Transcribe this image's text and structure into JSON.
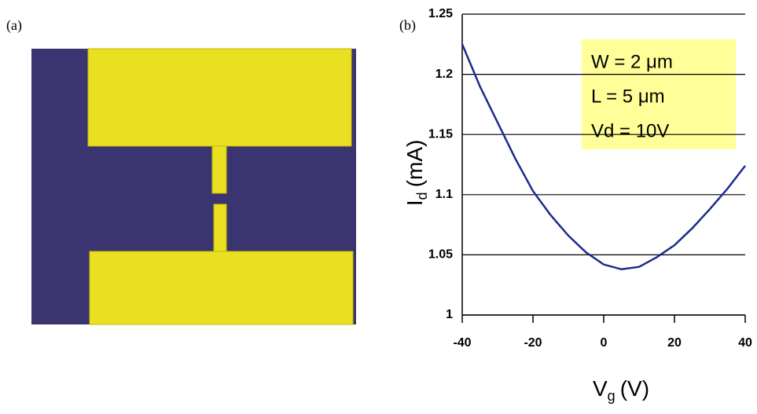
{
  "panels": {
    "a": "(a)",
    "b": "(b)"
  },
  "chart_data": {
    "type": "line",
    "x_label": {
      "main": "V",
      "sub": "g",
      "unit": "(V)"
    },
    "y_label": {
      "main": "I",
      "sub": "d",
      "unit": "(mA)"
    },
    "annotation": [
      "W = 2 μm",
      "L = 5 μm",
      "Vd = 10V"
    ],
    "x": [
      -40,
      -35,
      -30,
      -25,
      -20,
      -15,
      -10,
      -5,
      0,
      5,
      10,
      15,
      20,
      25,
      30,
      35,
      40
    ],
    "series": [
      {
        "color": "#1c2a8c",
        "values": [
          1.225,
          1.19,
          1.16,
          1.13,
          1.103,
          1.083,
          1.066,
          1.052,
          1.042,
          1.038,
          1.04,
          1.048,
          1.058,
          1.072,
          1.088,
          1.105,
          1.124
        ]
      }
    ],
    "xlim": [
      -40,
      40
    ],
    "xticks": [
      -40,
      -20,
      0,
      20,
      40
    ],
    "ylim": [
      1,
      1.25
    ],
    "yticks": [
      1,
      1.05,
      1.1,
      1.15,
      1.2,
      1.25
    ],
    "grid": true
  }
}
